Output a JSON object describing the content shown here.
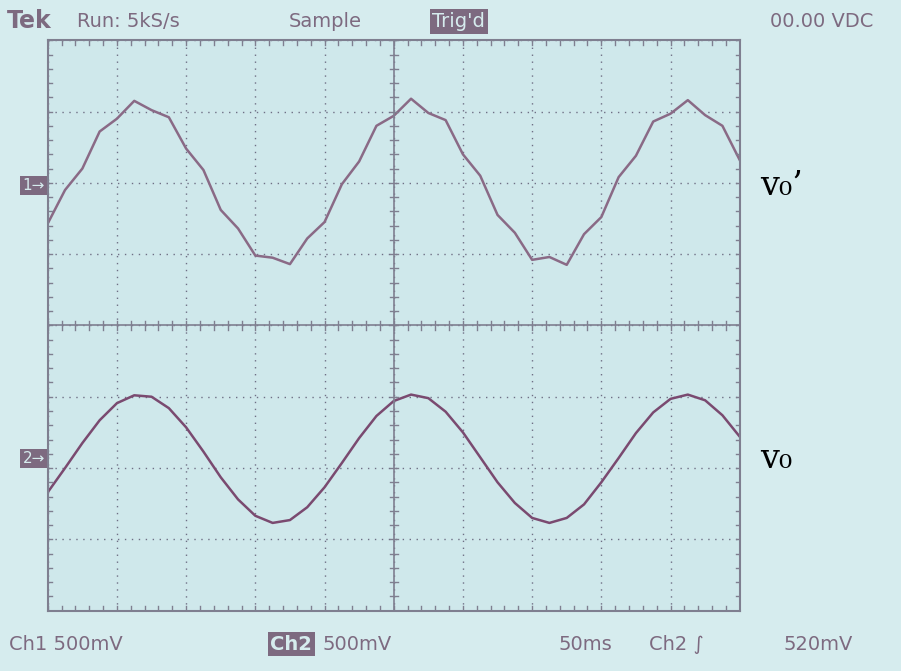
{
  "chart_data": {
    "type": "line",
    "header": [
      "Tek",
      "Run: 5kS/s",
      "Sample",
      "Trig'd",
      "00.00 VDC"
    ],
    "footer": [
      "Ch1 500mV",
      "Ch2",
      "500mV",
      "50ms",
      "Ch2 ∫",
      "520mV"
    ],
    "x": [
      0,
      0.25,
      0.5,
      0.75,
      1,
      1.25,
      1.5,
      1.75,
      2,
      2.25,
      2.5,
      2.75,
      3,
      3.25,
      3.5,
      3.75,
      4,
      4.25,
      4.5,
      4.75,
      5,
      5.25,
      5.5,
      5.75,
      6,
      6.25,
      6.5,
      6.75,
      7,
      7.25,
      7.5,
      7.75,
      8,
      8.25,
      8.5,
      8.75,
      9,
      9.25,
      9.5,
      9.75,
      10
    ],
    "series": [
      {
        "name": "v₀’",
        "marker_text": "1→",
        "offset": 1.96,
        "color": "#8a6a86",
        "values": [
          1.43,
          1.9,
          2.2,
          2.72,
          2.9,
          3.15,
          3.02,
          2.92,
          2.48,
          2.18,
          1.62,
          1.36,
          0.98,
          0.95,
          0.86,
          1.22,
          1.45,
          1.98,
          2.3,
          2.8,
          2.94,
          3.18,
          2.98,
          2.88,
          2.4,
          2.1,
          1.55,
          1.3,
          0.92,
          0.96,
          0.85,
          1.28,
          1.52,
          2.08,
          2.38,
          2.86,
          2.97,
          3.16,
          2.95,
          2.8,
          2.32
        ]
      },
      {
        "name": "v₀",
        "marker_text": "2→",
        "offset": -1.87,
        "color": "#7a4a70",
        "values": [
          -2.34,
          -2.0,
          -1.65,
          -1.33,
          -1.09,
          -0.98,
          -1.0,
          -1.16,
          -1.43,
          -1.77,
          -2.13,
          -2.44,
          -2.67,
          -2.77,
          -2.73,
          -2.55,
          -2.27,
          -1.93,
          -1.58,
          -1.27,
          -1.06,
          -0.97,
          -1.02,
          -1.21,
          -1.5,
          -1.85,
          -2.2,
          -2.49,
          -2.7,
          -2.77,
          -2.7,
          -2.51,
          -2.2,
          -1.86,
          -1.51,
          -1.22,
          -1.03,
          -0.97,
          -1.05,
          -1.26,
          -1.56
        ]
      }
    ],
    "xlim": [
      0,
      10
    ],
    "ylim": [
      -4,
      4
    ],
    "xticks": [
      0,
      1,
      2,
      3,
      4,
      5,
      6,
      7,
      8,
      9,
      10
    ],
    "yticks": [
      -4,
      -3,
      -2,
      -1,
      0,
      1,
      2,
      3,
      4
    ],
    "grid": true,
    "tick_labels": false
  }
}
